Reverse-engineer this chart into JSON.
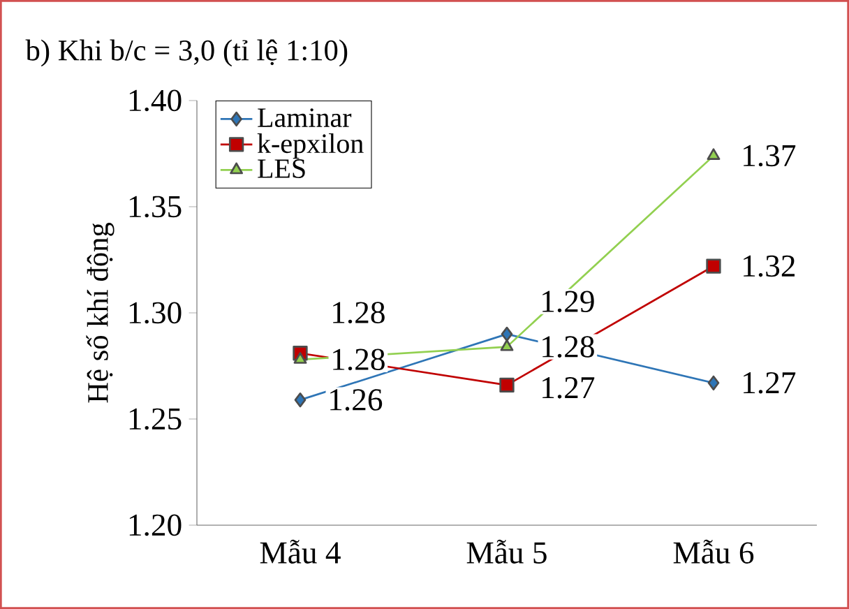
{
  "chart_data": {
    "type": "line",
    "title": "b) Khi b/c = 3,0 (tỉ lệ 1:10)",
    "ylabel": "Hệ số khí động",
    "categories": [
      "Mẫu 4",
      "Mẫu 5",
      "Mẫu 6"
    ],
    "series": [
      {
        "name": "Laminar",
        "color": "#2e75b6",
        "marker": "diamond",
        "values": [
          1.259,
          1.29,
          1.267
        ],
        "value_labels": [
          "1.26",
          "1.29",
          "1.27"
        ]
      },
      {
        "name": "k-epxilon",
        "color": "#c00000",
        "marker": "square",
        "values": [
          1.281,
          1.266,
          1.322
        ],
        "value_labels": [
          "1.28",
          "1.27",
          "1.32"
        ]
      },
      {
        "name": "LES",
        "color": "#92d050",
        "marker": "triangle",
        "values": [
          1.278,
          1.284,
          1.374
        ],
        "value_labels": [
          "1.28",
          "1.28",
          "1.37"
        ]
      }
    ],
    "ylim": [
      1.2,
      1.4
    ],
    "yticks": [
      {
        "value": 1.2,
        "label": "1.20"
      },
      {
        "value": 1.25,
        "label": "1.25"
      },
      {
        "value": 1.3,
        "label": "1.30"
      },
      {
        "value": 1.35,
        "label": "1.35"
      },
      {
        "value": 1.4,
        "label": "1.40"
      }
    ],
    "legend": "top left",
    "grid": false,
    "line_style": "solid"
  }
}
